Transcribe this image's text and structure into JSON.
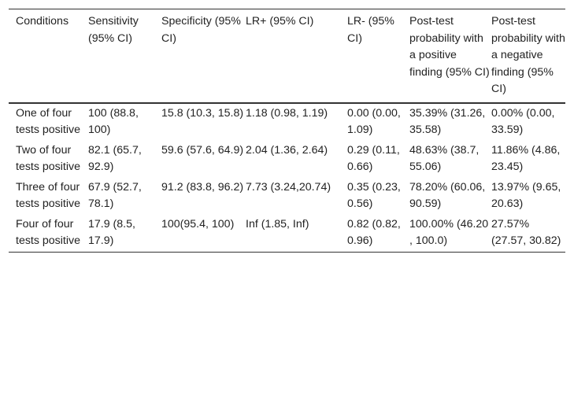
{
  "table": {
    "headers": [
      "Conditions",
      "Sensitivity (95% CI)",
      "Specificity (95% CI)",
      "LR+ (95% CI)",
      "LR- (95% CI)",
      "Post-test probability with a positive finding (95% CI)",
      "Post-test probability with a negative finding (95% CI)"
    ],
    "rows": [
      [
        "One of four tests positive",
        "100 (88.8, 100)",
        "15.8 (10.3, 15.8)",
        "1.18 (0.98, 1.19)",
        "0.00 (0.00, 1.09)",
        "35.39% (31.26, 35.58)",
        "0.00% (0.00, 33.59)"
      ],
      [
        "Two of four tests positive",
        "82.1 (65.7, 92.9)",
        "59.6 (57.6, 64.9)",
        "2.04 (1.36, 2.64)",
        "0.29 (0.11, 0.66)",
        "48.63% (38.7, 55.06)",
        "11.86% (4.86, 23.45)"
      ],
      [
        "Three of four tests positive",
        "67.9 (52.7, 78.1)",
        "91.2 (83.8, 96.2)",
        "7.73 (3.24,20.74)",
        "0.35 (0.23, 0.56)",
        "78.20% (60.06, 90.59)",
        "13.97% (9.65, 20.63)"
      ],
      [
        "Four of four tests positive",
        "17.9 (8.5, 17.9)",
        "100(95.4, 100)",
        "Inf (1.85, Inf)",
        "0.82 (0.82, 0.96)",
        "100.00% (46.20 , 100.0)",
        "27.57% (27.57, 30.82)"
      ]
    ]
  }
}
